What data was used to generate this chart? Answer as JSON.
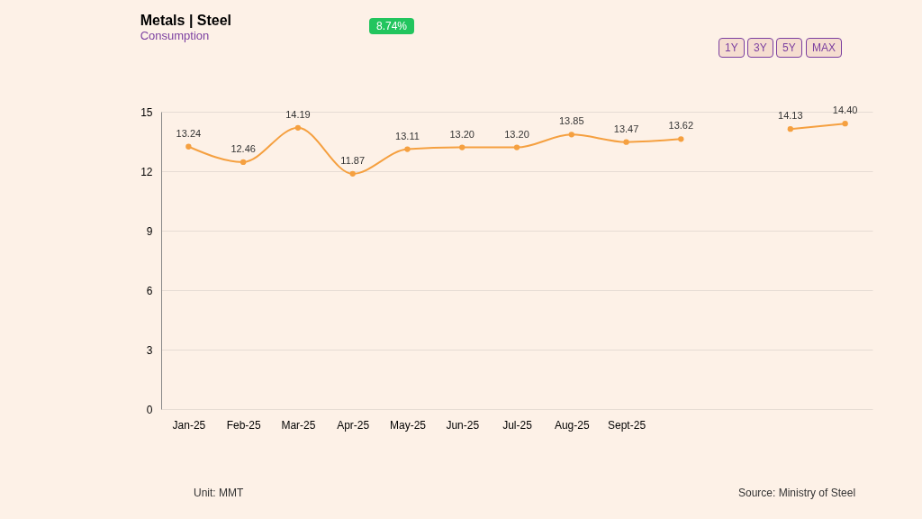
{
  "chart_data": {
    "type": "line",
    "title": "Metals | Steel",
    "subtitle": "Consumption",
    "categories": [
      "Jan-25",
      "Feb-25",
      "Mar-25",
      "Apr-25",
      "May-25",
      "Jun-25",
      "Jul-25",
      "Aug-25",
      "Sept-25",
      null,
      null,
      null,
      null
    ],
    "series": [
      {
        "color": "#f5a040",
        "values": [
          13.24,
          12.46,
          14.19,
          11.87,
          13.11,
          13.2,
          13.2,
          13.85,
          13.47,
          13.62,
          null,
          14.13,
          14.4
        ],
        "value_labels": [
          "13.24",
          "12.46",
          "14.19",
          "11.87",
          "13.11",
          "13.20",
          "13.20",
          "13.85",
          "13.47",
          "13.62",
          null,
          "14.13",
          "14.40"
        ]
      }
    ],
    "ylim": [
      0,
      15
    ],
    "yticks": [
      0,
      3,
      6,
      9,
      12,
      15
    ],
    "grid": "y",
    "marker": "circle",
    "line_style": "solid",
    "legend": false,
    "annotations": [
      "8.74%",
      "1Y",
      "3Y",
      "5Y",
      "MAX",
      "Unit: MMT",
      "Source: Ministry of Steel"
    ]
  }
}
